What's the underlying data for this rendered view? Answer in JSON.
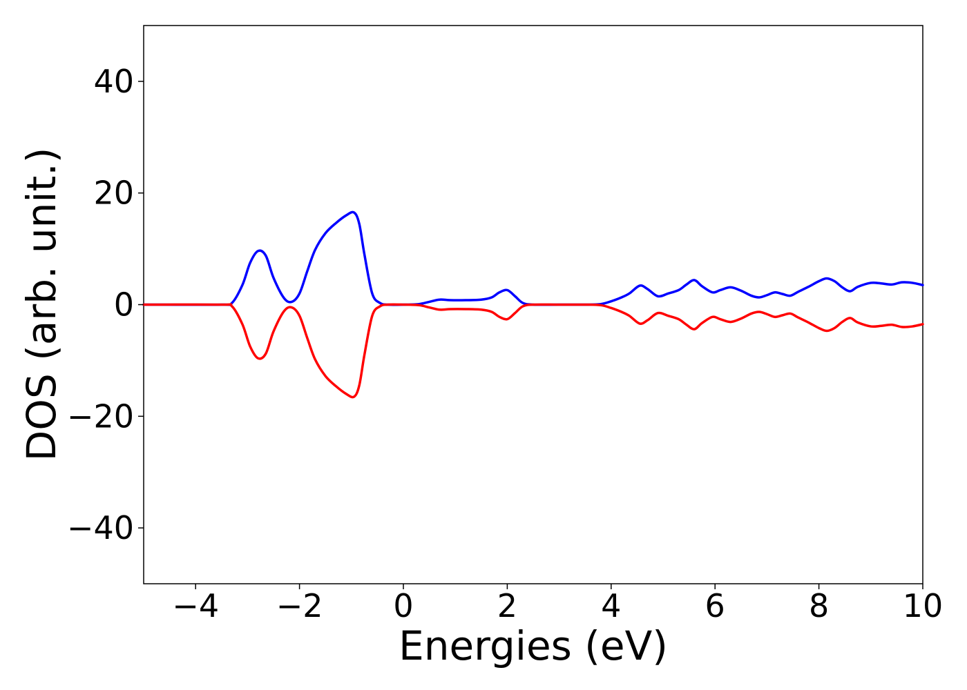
{
  "chart_data": {
    "type": "line",
    "xlabel": "Energies (eV)",
    "ylabel": "DOS (arb. unit.)",
    "xlim": [
      -5,
      10
    ],
    "ylim": [
      -50,
      50
    ],
    "xticks": [
      {
        "value": -4,
        "label": "−4"
      },
      {
        "value": -2,
        "label": "−2"
      },
      {
        "value": 0,
        "label": "0"
      },
      {
        "value": 2,
        "label": "2"
      },
      {
        "value": 4,
        "label": "4"
      },
      {
        "value": 6,
        "label": "6"
      },
      {
        "value": 8,
        "label": "8"
      },
      {
        "value": 10,
        "label": "10"
      }
    ],
    "yticks": [
      {
        "value": -40,
        "label": "−40"
      },
      {
        "value": -20,
        "label": "−20"
      },
      {
        "value": 0,
        "label": "0"
      },
      {
        "value": 20,
        "label": "20"
      },
      {
        "value": 40,
        "label": "40"
      }
    ],
    "grid": false,
    "series": [
      {
        "color": "#0000ff",
        "x": [
          -5,
          -3.5,
          -3.3,
          -3.1,
          -2.95,
          -2.8,
          -2.65,
          -2.5,
          -2.3,
          -2.15,
          -2.0,
          -1.85,
          -1.7,
          -1.5,
          -1.3,
          -1.1,
          -0.95,
          -0.85,
          -0.75,
          -0.6,
          -0.45,
          -0.3,
          0,
          0.3,
          0.5,
          0.7,
          0.9,
          1.2,
          1.5,
          1.7,
          1.85,
          2.0,
          2.15,
          2.3,
          2.5,
          3.0,
          3.5,
          3.8,
          4.0,
          4.2,
          4.35,
          4.55,
          4.7,
          4.9,
          5.1,
          5.3,
          5.45,
          5.6,
          5.75,
          5.95,
          6.1,
          6.3,
          6.5,
          6.7,
          6.85,
          7.0,
          7.15,
          7.3,
          7.45,
          7.6,
          7.8,
          8.0,
          8.15,
          8.3,
          8.45,
          8.6,
          8.75,
          9.0,
          9.2,
          9.4,
          9.6,
          9.8,
          10
        ],
        "y": [
          0,
          0,
          0.3,
          3.5,
          7.5,
          9.6,
          8.8,
          4.8,
          1.2,
          0.5,
          2.0,
          6.0,
          9.8,
          12.8,
          14.6,
          16.0,
          16.5,
          14.5,
          9.0,
          2.0,
          0.3,
          0,
          0,
          0.1,
          0.5,
          0.9,
          0.8,
          0.8,
          0.9,
          1.3,
          2.2,
          2.6,
          1.5,
          0.3,
          0,
          0,
          0,
          0.1,
          0.6,
          1.3,
          2.0,
          3.4,
          2.8,
          1.5,
          2.0,
          2.6,
          3.6,
          4.4,
          3.3,
          2.2,
          2.6,
          3.1,
          2.5,
          1.6,
          1.3,
          1.7,
          2.2,
          1.9,
          1.6,
          2.3,
          3.2,
          4.2,
          4.7,
          4.2,
          3.1,
          2.4,
          3.2,
          3.9,
          3.8,
          3.6,
          4.0,
          3.9,
          3.5
        ]
      },
      {
        "color": "#ff0000",
        "x": [
          -5,
          -3.5,
          -3.3,
          -3.1,
          -2.95,
          -2.8,
          -2.65,
          -2.5,
          -2.3,
          -2.15,
          -2.0,
          -1.85,
          -1.7,
          -1.5,
          -1.3,
          -1.1,
          -0.95,
          -0.85,
          -0.75,
          -0.6,
          -0.45,
          -0.3,
          0,
          0.3,
          0.5,
          0.7,
          0.9,
          1.2,
          1.5,
          1.7,
          1.85,
          2.0,
          2.15,
          2.3,
          2.5,
          3.0,
          3.5,
          3.8,
          4.0,
          4.2,
          4.35,
          4.55,
          4.7,
          4.9,
          5.1,
          5.3,
          5.45,
          5.6,
          5.75,
          5.95,
          6.1,
          6.3,
          6.5,
          6.7,
          6.85,
          7.0,
          7.15,
          7.3,
          7.45,
          7.6,
          7.8,
          8.0,
          8.15,
          8.3,
          8.45,
          8.6,
          8.75,
          9.0,
          9.2,
          9.4,
          9.6,
          9.8,
          10
        ],
        "y": [
          0,
          0,
          -0.3,
          -3.5,
          -7.5,
          -9.6,
          -8.8,
          -4.8,
          -1.2,
          -0.5,
          -2.0,
          -6.0,
          -9.8,
          -12.8,
          -14.6,
          -16.0,
          -16.5,
          -14.5,
          -9.0,
          -2.0,
          -0.3,
          0,
          0,
          -0.1,
          -0.5,
          -0.9,
          -0.8,
          -0.8,
          -0.9,
          -1.3,
          -2.2,
          -2.6,
          -1.5,
          -0.3,
          0,
          0,
          0,
          -0.1,
          -0.6,
          -1.3,
          -2.0,
          -3.4,
          -2.8,
          -1.5,
          -2.0,
          -2.6,
          -3.6,
          -4.4,
          -3.3,
          -2.2,
          -2.6,
          -3.1,
          -2.5,
          -1.6,
          -1.3,
          -1.7,
          -2.2,
          -1.9,
          -1.6,
          -2.3,
          -3.2,
          -4.2,
          -4.7,
          -4.2,
          -3.1,
          -2.4,
          -3.2,
          -3.9,
          -3.8,
          -3.6,
          -4.0,
          -3.9,
          -3.5
        ]
      }
    ]
  }
}
